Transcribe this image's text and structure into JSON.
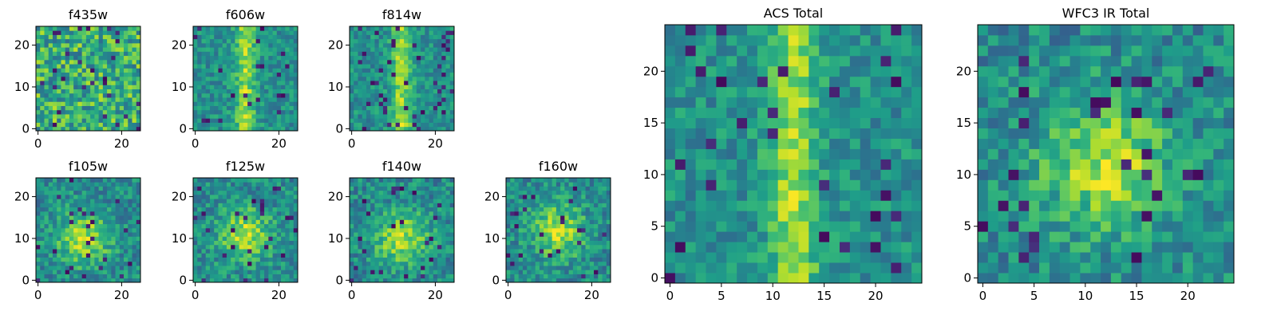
{
  "colormap": "viridis",
  "colors": {
    "low": "#440154",
    "mid": "#21918c",
    "high": "#fde725",
    "axes": "#000000"
  },
  "chart_data": [
    {
      "type": "heatmap",
      "title": "f435w",
      "shape": [
        25,
        25
      ],
      "xlim": [
        0,
        24
      ],
      "ylim": [
        0,
        24
      ],
      "xticks": [
        "0",
        "20"
      ],
      "yticks": [
        "0",
        "10",
        "20"
      ],
      "value_range": [
        0,
        1
      ],
      "peak_center": [
        12,
        12
      ],
      "structure": "noise"
    },
    {
      "type": "heatmap",
      "title": "f606w",
      "shape": [
        25,
        25
      ],
      "xlim": [
        0,
        24
      ],
      "ylim": [
        0,
        24
      ],
      "xticks": [
        "0",
        "20"
      ],
      "yticks": [
        "0",
        "10",
        "20"
      ],
      "value_range": [
        0,
        1
      ],
      "peak_center": [
        12,
        11
      ],
      "structure": "vertical-streak"
    },
    {
      "type": "heatmap",
      "title": "f814w",
      "shape": [
        25,
        25
      ],
      "xlim": [
        0,
        24
      ],
      "ylim": [
        0,
        24
      ],
      "xticks": [
        "0",
        "20"
      ],
      "yticks": [
        "0",
        "10",
        "20"
      ],
      "value_range": [
        0,
        1
      ],
      "peak_center": [
        12,
        11
      ],
      "structure": "vertical-streak"
    },
    {
      "type": "heatmap",
      "title": "f105w",
      "shape": [
        25,
        25
      ],
      "xlim": [
        0,
        24
      ],
      "ylim": [
        0,
        24
      ],
      "xticks": [
        "0",
        "20"
      ],
      "yticks": [
        "0",
        "10",
        "20"
      ],
      "value_range": [
        0,
        1
      ],
      "peak_center": [
        11,
        10
      ],
      "structure": "blob"
    },
    {
      "type": "heatmap",
      "title": "f125w",
      "shape": [
        25,
        25
      ],
      "xlim": [
        0,
        24
      ],
      "ylim": [
        0,
        24
      ],
      "xticks": [
        "0",
        "20"
      ],
      "yticks": [
        "0",
        "10",
        "20"
      ],
      "value_range": [
        0,
        1
      ],
      "peak_center": [
        12,
        11
      ],
      "structure": "blob"
    },
    {
      "type": "heatmap",
      "title": "f140w",
      "shape": [
        25,
        25
      ],
      "xlim": [
        0,
        24
      ],
      "ylim": [
        0,
        24
      ],
      "xticks": [
        "0",
        "20"
      ],
      "yticks": [
        "0",
        "10",
        "20"
      ],
      "value_range": [
        0,
        1
      ],
      "peak_center": [
        12,
        10
      ],
      "structure": "blob"
    },
    {
      "type": "heatmap",
      "title": "f160w",
      "shape": [
        25,
        25
      ],
      "xlim": [
        0,
        24
      ],
      "ylim": [
        0,
        24
      ],
      "xticks": [
        "0",
        "20"
      ],
      "yticks": [
        "0",
        "10",
        "20"
      ],
      "value_range": [
        0,
        1
      ],
      "peak_center": [
        12,
        12
      ],
      "structure": "blob"
    },
    {
      "type": "heatmap",
      "title": "ACS Total",
      "shape": [
        25,
        25
      ],
      "xlim": [
        0,
        24
      ],
      "ylim": [
        0,
        24
      ],
      "xticks": [
        "0",
        "5",
        "10",
        "15",
        "20"
      ],
      "yticks": [
        "0",
        "5",
        "10",
        "15",
        "20"
      ],
      "value_range": [
        0,
        1
      ],
      "peak_center": [
        12,
        11
      ],
      "structure": "vertical-streak"
    },
    {
      "type": "heatmap",
      "title": "WFC3 IR Total",
      "shape": [
        25,
        25
      ],
      "xlim": [
        0,
        24
      ],
      "ylim": [
        0,
        24
      ],
      "xticks": [
        "0",
        "5",
        "10",
        "15",
        "20"
      ],
      "yticks": [
        "0",
        "5",
        "10",
        "15",
        "20"
      ],
      "value_range": [
        0,
        1
      ],
      "peak_center": [
        12,
        11
      ],
      "structure": "blob"
    }
  ]
}
